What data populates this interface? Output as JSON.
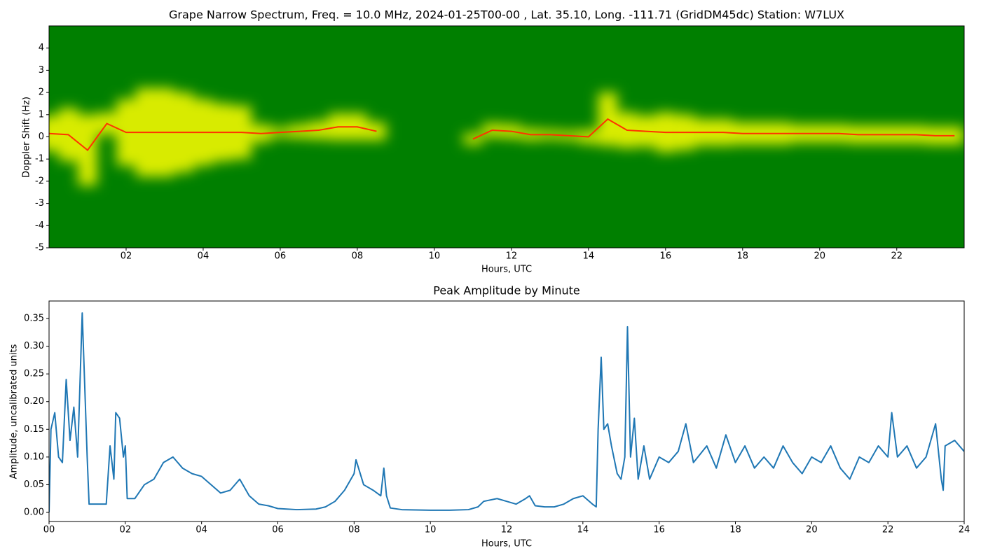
{
  "chart_data": [
    {
      "type": "spectrogram",
      "title": "Grape Narrow Spectrum, Freq. = 10.0 MHz, 2024-01-25T00-00 , Lat.  35.10, Long. -111.71 (GridDM45dc) Station: W7LUX",
      "xlabel": "Hours, UTC",
      "ylabel": "Doppler Shift (Hz)",
      "xlim": [
        0,
        23.75
      ],
      "ylim": [
        -5,
        5
      ],
      "xticks": [
        {
          "value": 2,
          "label": "02"
        },
        {
          "value": 4,
          "label": "04"
        },
        {
          "value": 6,
          "label": "06"
        },
        {
          "value": 8,
          "label": "08"
        },
        {
          "value": 10,
          "label": "10"
        },
        {
          "value": 12,
          "label": "12"
        },
        {
          "value": 14,
          "label": "14"
        },
        {
          "value": 16,
          "label": "16"
        },
        {
          "value": 18,
          "label": "18"
        },
        {
          "value": 20,
          "label": "20"
        },
        {
          "value": 22,
          "label": "22"
        }
      ],
      "yticks": [
        -5,
        -4,
        -3,
        -2,
        -1,
        0,
        1,
        2,
        3,
        4
      ],
      "background_color": "#007f00",
      "band_color": "#ffff00",
      "ridge_color": "#ff3300",
      "x": [
        0,
        0.5,
        1,
        1.5,
        2,
        2.5,
        3,
        3.5,
        4,
        4.5,
        5,
        5.5,
        6,
        6.5,
        7,
        7.5,
        8,
        8.5,
        9,
        9.5,
        10,
        10.5,
        11,
        11.5,
        12,
        12.5,
        13,
        13.5,
        14,
        14.5,
        15,
        15.5,
        16,
        16.5,
        17,
        17.5,
        18,
        18.5,
        19,
        19.5,
        20,
        20.5,
        21,
        21.5,
        22,
        22.5,
        23,
        23.5
      ],
      "doppler": [
        0.15,
        0.1,
        -0.6,
        0.6,
        0.2,
        0.2,
        0.2,
        0.2,
        0.2,
        0.2,
        0.2,
        0.15,
        0.2,
        0.25,
        0.3,
        0.45,
        0.45,
        0.25,
        null,
        null,
        null,
        null,
        -0.1,
        0.3,
        0.25,
        0.1,
        0.1,
        0.05,
        0.0,
        0.8,
        0.3,
        0.25,
        0.2,
        0.2,
        0.2,
        0.2,
        0.15,
        0.15,
        0.15,
        0.15,
        0.15,
        0.15,
        0.1,
        0.1,
        0.1,
        0.1,
        0.05,
        0.05
      ],
      "spread": [
        0.8,
        1.2,
        1.6,
        0.5,
        1.5,
        2.0,
        2.0,
        1.8,
        1.5,
        1.3,
        1.2,
        0.4,
        0.2,
        0.3,
        0.4,
        0.6,
        0.6,
        0.4,
        null,
        null,
        null,
        null,
        0.25,
        0.3,
        0.3,
        0.25,
        0.2,
        0.2,
        0.3,
        1.2,
        0.8,
        0.7,
        0.9,
        0.8,
        0.6,
        0.6,
        0.5,
        0.5,
        0.5,
        0.4,
        0.4,
        0.4,
        0.4,
        0.4,
        0.4,
        0.4,
        0.4,
        0.4
      ]
    },
    {
      "type": "line",
      "title": "Peak Amplitude by Minute",
      "xlabel": "Hours, UTC",
      "ylabel": "Amplitude, uncalibrated units",
      "xlim": [
        0,
        24
      ],
      "ylim": [
        -0.0164,
        0.3816
      ],
      "xticks": [
        {
          "value": 0,
          "label": "00"
        },
        {
          "value": 2,
          "label": "02"
        },
        {
          "value": 4,
          "label": "04"
        },
        {
          "value": 6,
          "label": "06"
        },
        {
          "value": 8,
          "label": "08"
        },
        {
          "value": 10,
          "label": "10"
        },
        {
          "value": 12,
          "label": "12"
        },
        {
          "value": 14,
          "label": "14"
        },
        {
          "value": 16,
          "label": "16"
        },
        {
          "value": 18,
          "label": "18"
        },
        {
          "value": 20,
          "label": "20"
        },
        {
          "value": 22,
          "label": "22"
        },
        {
          "value": 24,
          "label": "24"
        }
      ],
      "yticks": [
        {
          "value": 0,
          "label": "0.00"
        },
        {
          "value": 0.05,
          "label": "0.05"
        },
        {
          "value": 0.1,
          "label": "0.10"
        },
        {
          "value": 0.15,
          "label": "0.15"
        },
        {
          "value": 0.2,
          "label": "0.20"
        },
        {
          "value": 0.25,
          "label": "0.25"
        },
        {
          "value": 0.3,
          "label": "0.30"
        },
        {
          "value": 0.35,
          "label": "0.35"
        }
      ],
      "color": "#1f77b4",
      "x": [
        0,
        0.05,
        0.15,
        0.25,
        0.35,
        0.45,
        0.55,
        0.65,
        0.75,
        0.87,
        0.95,
        1.0,
        1.05,
        1.25,
        1.5,
        1.6,
        1.7,
        1.75,
        1.85,
        1.95,
        2.0,
        2.05,
        2.25,
        2.5,
        2.75,
        3.0,
        3.25,
        3.5,
        3.75,
        4.0,
        4.25,
        4.5,
        4.75,
        5.0,
        5.25,
        5.5,
        5.75,
        6.0,
        6.5,
        7.0,
        7.25,
        7.5,
        7.75,
        8.0,
        8.05,
        8.25,
        8.5,
        8.7,
        8.78,
        8.85,
        8.95,
        9.25,
        10,
        10.5,
        11,
        11.25,
        11.4,
        11.75,
        12,
        12.25,
        12.5,
        12.6,
        12.75,
        13,
        13.25,
        13.5,
        13.75,
        14,
        14.25,
        14.35,
        14.4,
        14.48,
        14.55,
        14.65,
        14.75,
        14.9,
        15.0,
        15.1,
        15.17,
        15.25,
        15.35,
        15.45,
        15.6,
        15.75,
        16.0,
        16.25,
        16.5,
        16.7,
        16.9,
        17.25,
        17.5,
        17.75,
        18,
        18.25,
        18.5,
        18.75,
        19,
        19.25,
        19.5,
        19.75,
        20,
        20.25,
        20.5,
        20.75,
        21,
        21.25,
        21.5,
        21.75,
        22.0,
        22.1,
        22.25,
        22.5,
        22.75,
        23.0,
        23.25,
        23.4,
        23.45,
        23.5,
        23.75,
        24
      ],
      "values": [
        0.0,
        0.15,
        0.18,
        0.1,
        0.09,
        0.24,
        0.13,
        0.19,
        0.1,
        0.36,
        0.2,
        0.1,
        0.015,
        0.015,
        0.015,
        0.12,
        0.06,
        0.18,
        0.17,
        0.1,
        0.12,
        0.025,
        0.025,
        0.05,
        0.06,
        0.09,
        0.1,
        0.08,
        0.07,
        0.065,
        0.05,
        0.035,
        0.04,
        0.06,
        0.03,
        0.015,
        0.012,
        0.007,
        0.005,
        0.006,
        0.01,
        0.02,
        0.04,
        0.07,
        0.095,
        0.05,
        0.04,
        0.03,
        0.08,
        0.03,
        0.008,
        0.005,
        0.004,
        0.004,
        0.005,
        0.01,
        0.02,
        0.025,
        0.02,
        0.015,
        0.025,
        0.03,
        0.012,
        0.01,
        0.01,
        0.015,
        0.025,
        0.03,
        0.015,
        0.01,
        0.15,
        0.28,
        0.15,
        0.16,
        0.12,
        0.07,
        0.06,
        0.1,
        0.335,
        0.1,
        0.17,
        0.06,
        0.12,
        0.06,
        0.1,
        0.09,
        0.11,
        0.16,
        0.09,
        0.12,
        0.08,
        0.14,
        0.09,
        0.12,
        0.08,
        0.1,
        0.08,
        0.12,
        0.09,
        0.07,
        0.1,
        0.09,
        0.12,
        0.08,
        0.06,
        0.1,
        0.09,
        0.12,
        0.1,
        0.18,
        0.1,
        0.12,
        0.08,
        0.1,
        0.16,
        0.06,
        0.04,
        0.12,
        0.13,
        0.11
      ]
    }
  ]
}
